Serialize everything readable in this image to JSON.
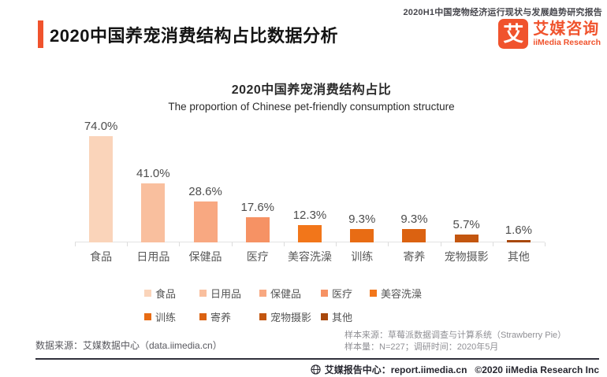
{
  "header": {
    "report_series": "2020H1中国宠物经济运行现状与发展趋势研究报告",
    "title": "2020中国养宠消费结构占比数据分析",
    "logo": {
      "glyph": "艾",
      "name_cn": "艾媒咨询",
      "name_en": "iiMedia Research"
    }
  },
  "chart_data": {
    "type": "bar",
    "title": "2020中国养宠消费结构占比",
    "subtitle": "The proportion of Chinese pet-friendly consumption structure",
    "categories": [
      "食品",
      "日用品",
      "保健品",
      "医疗",
      "美容洗澡",
      "训练",
      "寄养",
      "宠物摄影",
      "其他"
    ],
    "values": [
      74.0,
      41.0,
      28.6,
      17.6,
      12.3,
      9.3,
      9.3,
      5.7,
      1.6
    ],
    "value_labels": [
      "74.0%",
      "41.0%",
      "28.6%",
      "17.6%",
      "12.3%",
      "9.3%",
      "9.3%",
      "5.7%",
      "1.6%"
    ],
    "bar_colors": [
      "#FAD4BA",
      "#F9BF9E",
      "#F8A881",
      "#F69264",
      "#F2761A",
      "#E86C14",
      "#DB6211",
      "#C3560F",
      "#A8480C"
    ],
    "xlabel": "",
    "ylabel": "",
    "ylim": [
      0,
      80
    ],
    "grid": false,
    "legend_position": "bottom"
  },
  "sources": {
    "data_source": "数据来源：艾媒数据中心（data.iimedia.cn）",
    "sample_source": "样本来源：草莓派数据调查与计算系统（Strawberry Pie）",
    "sample_info": "样本量：N=227；调研时间：2020年5月"
  },
  "footer": {
    "report_center": "艾媒报告中心：report.iimedia.cn",
    "copyright": "©2020  iiMedia Research  Inc"
  },
  "colors": {
    "accent": "#F0532D",
    "axis": "#E2E2E2"
  }
}
